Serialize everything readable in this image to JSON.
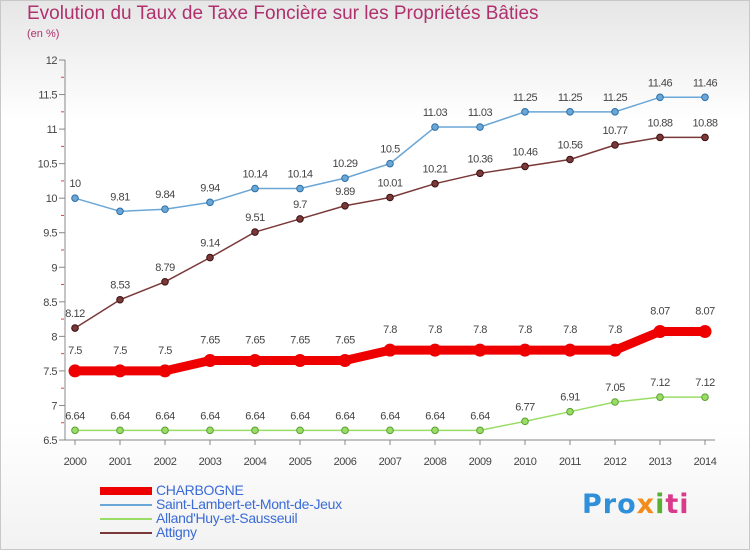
{
  "title": "Evolution du Taux de Taxe Foncière sur les Propriétés Bâties",
  "unit_label": "(en %)",
  "logo": {
    "text": "Proxiti",
    "parts": [
      "Pro",
      "x",
      "i",
      "ti"
    ]
  },
  "chart_data": {
    "type": "line",
    "title": "Evolution du Taux de Taxe Foncière sur les Propriétés Bâties",
    "ylabel": "(en %)",
    "xlabel": "",
    "ylim": [
      6.5,
      12
    ],
    "yticks": [
      "6.5",
      "7",
      "7.5",
      "8",
      "8.5",
      "9",
      "9.5",
      "10",
      "10.5",
      "11",
      "11.5",
      "12"
    ],
    "x": [
      "2000",
      "2001",
      "2002",
      "2003",
      "2004",
      "2005",
      "2006",
      "2007",
      "2008",
      "2009",
      "2010",
      "2011",
      "2012",
      "2013",
      "2014"
    ],
    "grid": false,
    "legend_position": "bottom-left",
    "series": [
      {
        "name": "CHARBOGNE",
        "color": "#ee0000",
        "values": [
          7.5,
          7.5,
          7.5,
          7.65,
          7.65,
          7.65,
          7.65,
          7.8,
          7.8,
          7.8,
          7.8,
          7.8,
          7.8,
          8.07,
          8.07
        ],
        "labels": [
          "7.5",
          "7.5",
          "7.5",
          "7.65",
          "7.65",
          "7.65",
          "7.65",
          "7.8",
          "7.8",
          "7.8",
          "7.8",
          "7.8",
          "7.8",
          "8.07",
          "8.07"
        ]
      },
      {
        "name": "Saint-Lambert-et-Mont-de-Jeux",
        "color": "#6aa6d6",
        "values": [
          10,
          9.81,
          9.84,
          9.94,
          10.14,
          10.14,
          10.29,
          10.5,
          11.03,
          11.03,
          11.25,
          11.25,
          11.25,
          11.46,
          11.46
        ],
        "labels": [
          "10",
          "9.81",
          "9.84",
          "9.94",
          "10.14",
          "10.14",
          "10.29",
          "10.5",
          "11.03",
          "11.03",
          "11.25",
          "11.25",
          "11.25",
          "11.46",
          "11.46"
        ]
      },
      {
        "name": "Alland'Huy-et-Sausseuil",
        "color": "#99dd66",
        "values": [
          6.64,
          6.64,
          6.64,
          6.64,
          6.64,
          6.64,
          6.64,
          6.64,
          6.64,
          6.64,
          6.77,
          6.91,
          7.05,
          7.12,
          7.12
        ],
        "labels": [
          "6.64",
          "6.64",
          "6.64",
          "6.64",
          "6.64",
          "6.64",
          "6.64",
          "6.64",
          "6.64",
          "6.64",
          "6.77",
          "6.91",
          "7.05",
          "7.12",
          "7.12"
        ]
      },
      {
        "name": "Attigny",
        "color": "#7a3838",
        "values": [
          8.12,
          8.53,
          8.79,
          9.14,
          9.51,
          9.7,
          9.89,
          10.01,
          10.21,
          10.36,
          10.46,
          10.56,
          10.77,
          10.88,
          10.88
        ],
        "labels": [
          "8.12",
          "8.53",
          "8.79",
          "9.14",
          "9.51",
          "9.7",
          "9.89",
          "10.01",
          "10.21",
          "10.36",
          "10.46",
          "10.56",
          "10.77",
          "10.88",
          "10.88"
        ]
      }
    ]
  }
}
